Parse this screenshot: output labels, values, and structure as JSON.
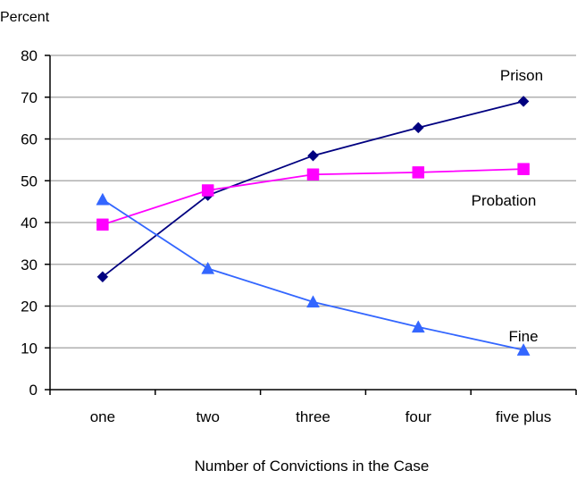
{
  "chart_data": {
    "type": "line",
    "title": "",
    "ylabel": "Percent",
    "xlabel": "Number of Convictions in the Case",
    "categories": [
      "one",
      "two",
      "three",
      "four",
      "five plus"
    ],
    "ylim": [
      0,
      80
    ],
    "yticks": [
      0,
      10,
      20,
      30,
      40,
      50,
      60,
      70,
      80
    ],
    "grid": true,
    "legend": "inline labels near series",
    "series": [
      {
        "name": "Prison",
        "values": [
          27,
          46.5,
          56,
          62.7,
          69
        ],
        "color": "#000080",
        "marker": "diamond"
      },
      {
        "name": "Probation",
        "values": [
          39.5,
          47.7,
          51.5,
          52,
          52.8
        ],
        "color": "#FF00FF",
        "marker": "square"
      },
      {
        "name": "Fine",
        "values": [
          45.5,
          29,
          21,
          15,
          9.5
        ],
        "color": "#3366FF",
        "marker": "triangle"
      }
    ]
  }
}
